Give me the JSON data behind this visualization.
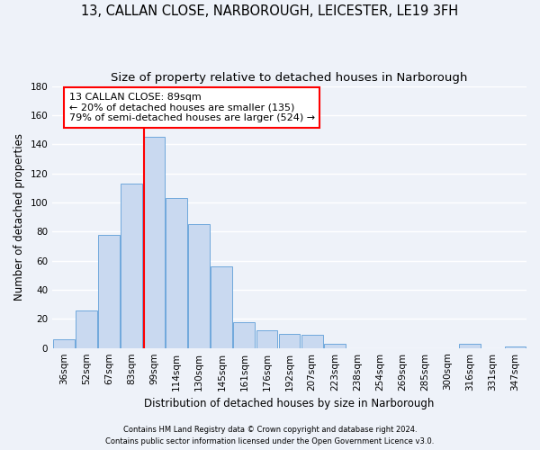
{
  "title": "13, CALLAN CLOSE, NARBOROUGH, LEICESTER, LE19 3FH",
  "subtitle": "Size of property relative to detached houses in Narborough",
  "xlabel": "Distribution of detached houses by size in Narborough",
  "ylabel": "Number of detached properties",
  "bar_labels": [
    "36sqm",
    "52sqm",
    "67sqm",
    "83sqm",
    "99sqm",
    "114sqm",
    "130sqm",
    "145sqm",
    "161sqm",
    "176sqm",
    "192sqm",
    "207sqm",
    "223sqm",
    "238sqm",
    "254sqm",
    "269sqm",
    "285sqm",
    "300sqm",
    "316sqm",
    "331sqm",
    "347sqm"
  ],
  "bar_values": [
    6,
    26,
    78,
    113,
    145,
    103,
    85,
    56,
    18,
    12,
    10,
    9,
    3,
    0,
    0,
    0,
    0,
    0,
    3,
    0,
    1
  ],
  "bar_color": "#c9d9f0",
  "bar_edge_color": "#6fa8dc",
  "vline_color": "red",
  "annotation_line1": "13 CALLAN CLOSE: 89sqm",
  "annotation_line2": "← 20% of detached houses are smaller (135)",
  "annotation_line3": "79% of semi-detached houses are larger (524) →",
  "annotation_box_color": "white",
  "annotation_box_edge": "red",
  "ylim": [
    0,
    180
  ],
  "yticks": [
    0,
    20,
    40,
    60,
    80,
    100,
    120,
    140,
    160,
    180
  ],
  "footnote1": "Contains HM Land Registry data © Crown copyright and database right 2024.",
  "footnote2": "Contains public sector information licensed under the Open Government Licence v3.0.",
  "bg_color": "#eef2f9",
  "grid_color": "white",
  "title_fontsize": 10.5,
  "subtitle_fontsize": 9.5,
  "axis_label_fontsize": 8.5,
  "tick_fontsize": 7.5,
  "footnote_fontsize": 6.0
}
